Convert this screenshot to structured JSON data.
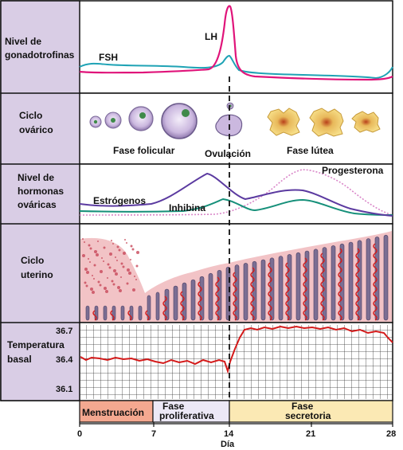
{
  "rows": [
    {
      "label_lines": [
        "Nivel de",
        "gonadotrofinas"
      ]
    },
    {
      "label_lines": [
        "Ciclo",
        "ovárico"
      ]
    },
    {
      "label_lines": [
        "Nivel de",
        "hormonas",
        "ováricas"
      ]
    },
    {
      "label_lines": [
        "Ciclo",
        "uterino"
      ]
    },
    {
      "label_lines": [
        "Temperatura",
        "basal"
      ]
    }
  ],
  "gonadotropins": {
    "lh_label": "LH",
    "fsh_label": "FSH",
    "lh_color": "#e0147a",
    "fsh_color": "#1fa3b5"
  },
  "ovarian_cycle": {
    "follicular_label": "Fase folicular",
    "ovulation_label": "Ovulación",
    "luteal_label": "Fase lútea"
  },
  "ovarian_hormones": {
    "estrogen_label": "Estrógenos",
    "inhibin_label": "Inhibina",
    "progesterone_label": "Progesterona",
    "estrogen_color": "#5b3aa0",
    "inhibin_color": "#16907a",
    "progesterone_color": "#d986c8"
  },
  "basal_temperature": {
    "ticks": [
      "36.7",
      "36.4",
      "36.1"
    ],
    "line_color": "#d41a1a"
  },
  "phases": [
    {
      "label_lines": [
        "Menstruación"
      ],
      "color": "#f4a890"
    },
    {
      "label_lines": [
        "Fase",
        "proliferativa"
      ],
      "color": "#ece8f6"
    },
    {
      "label_lines": [
        "Fase",
        "secretoria"
      ],
      "color": "#fbe9b4"
    }
  ],
  "x_axis": {
    "ticks": [
      "0",
      "7",
      "14",
      "21",
      "28"
    ],
    "label": "Día"
  },
  "colors": {
    "label_panel": "#d9cde5",
    "uterine_bg": "#f2c3c6",
    "gland": "#7b6e93",
    "artery": "#d41a1a"
  }
}
